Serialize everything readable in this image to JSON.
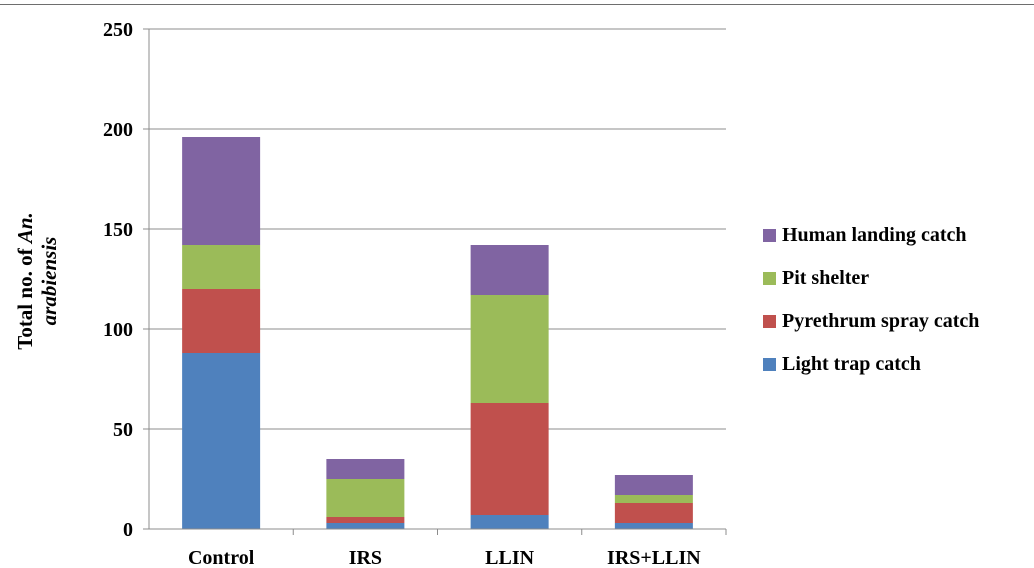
{
  "chart_data": {
    "type": "bar",
    "stacked": true,
    "title": "",
    "xlabel": "",
    "ylabel_prefix": "Total no. of ",
    "ylabel_italic": "An. arabiensis",
    "categories": [
      "Control",
      "IRS",
      "LLIN",
      "IRS+LLIN"
    ],
    "ylim": [
      0,
      250
    ],
    "yticks": [
      0,
      50,
      100,
      150,
      200,
      250
    ],
    "grid": true,
    "legend_position": "right",
    "series": [
      {
        "name": "Light trap catch",
        "color": "#4f81bd",
        "values": [
          88,
          3,
          7,
          3
        ]
      },
      {
        "name": "Pyrethrum spray catch",
        "color": "#c0504d",
        "values": [
          32,
          3,
          56,
          10
        ]
      },
      {
        "name": "Pit shelter",
        "color": "#9bbb59",
        "values": [
          22,
          19,
          54,
          4
        ]
      },
      {
        "name": "Human landing catch",
        "color": "#8064a2",
        "values": [
          54,
          10,
          25,
          10
        ]
      }
    ]
  }
}
